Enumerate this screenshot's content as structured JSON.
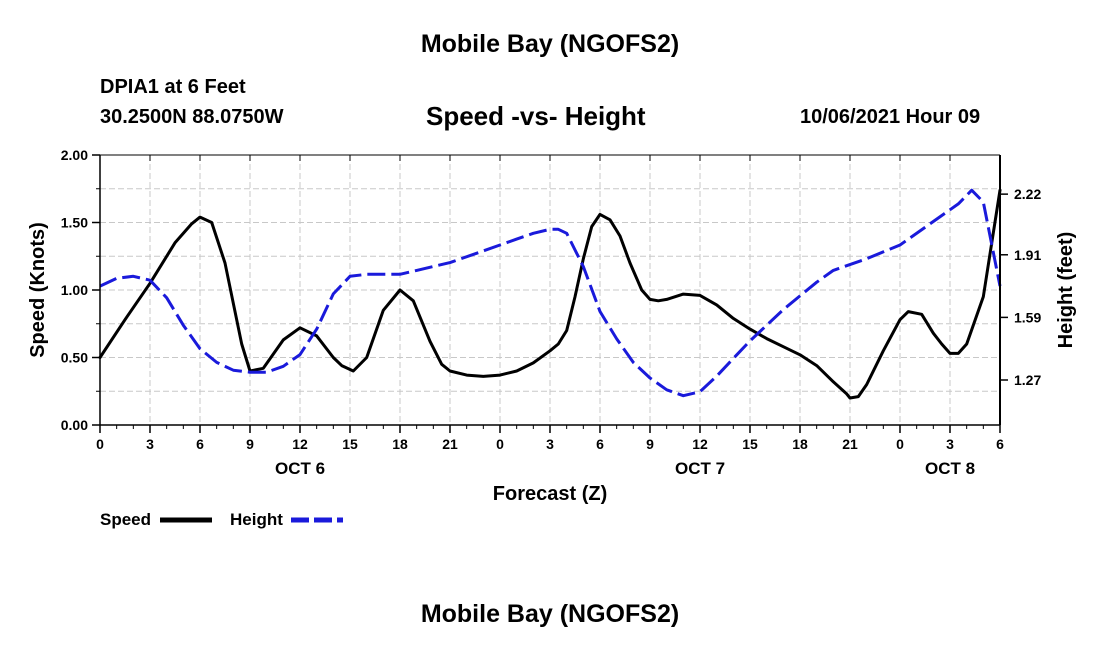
{
  "header": {
    "title": "Mobile Bay (NGOFS2)",
    "station": "DPIA1 at 6 Feet",
    "coordinates": "30.2500N  88.0750W",
    "subtitle": "Speed -vs- Height",
    "datetime": "10/06/2021 Hour 09"
  },
  "footer": {
    "title": "Mobile Bay (NGOFS2)"
  },
  "colors": {
    "speed": "#000000",
    "height": "#1a1adb",
    "grid": "#c8c8c8"
  },
  "chart_data": {
    "type": "line",
    "title": "Speed -vs- Height",
    "xlabel": "Forecast (Z)",
    "ylabel": "Speed (Knots)",
    "y2label": "Height (feet)",
    "xlim": [
      0,
      54
    ],
    "ylim": [
      0,
      2.0
    ],
    "y2lim": [
      1.04,
      2.42
    ],
    "x_ticks": [
      0,
      3,
      6,
      9,
      12,
      15,
      18,
      21,
      24,
      27,
      30,
      33,
      36,
      39,
      42,
      45,
      48,
      51,
      54
    ],
    "x_tick_labels": [
      "0",
      "3",
      "6",
      "9",
      "12",
      "15",
      "18",
      "21",
      "0",
      "3",
      "6",
      "9",
      "12",
      "15",
      "18",
      "21",
      "0",
      "3",
      "6"
    ],
    "day_labels": [
      {
        "x": 12,
        "label": "OCT 6"
      },
      {
        "x": 36,
        "label": "OCT 7"
      },
      {
        "x": 51,
        "label": "OCT 8"
      }
    ],
    "y_ticks": [
      0,
      0.5,
      1.0,
      1.5,
      2.0
    ],
    "y_tick_labels": [
      "0.00",
      "0.50",
      "1.00",
      "1.50",
      "2.00"
    ],
    "y2_ticks": [
      1.27,
      1.59,
      1.91,
      2.22
    ],
    "y2_tick_labels": [
      "1.27",
      "1.59",
      "1.91",
      "2.22"
    ],
    "grid": true,
    "legend": [
      "Speed",
      "Height"
    ],
    "series": [
      {
        "name": "Speed",
        "axis": "left",
        "x": [
          0,
          1.5,
          3,
          4.5,
          5.5,
          6,
          6.7,
          7.5,
          8.5,
          9,
          9.8,
          11,
          12,
          13,
          14,
          14.5,
          15.2,
          16,
          17,
          18,
          18.8,
          19.8,
          20.5,
          21,
          22,
          23,
          24,
          25,
          26,
          27,
          27.5,
          28,
          28.5,
          29,
          29.5,
          30,
          30.6,
          31.2,
          31.8,
          32.5,
          33,
          33.5,
          34,
          35,
          36,
          37,
          38,
          39,
          40,
          41,
          42,
          43,
          44,
          44.8,
          45,
          45.5,
          46,
          47,
          48,
          48.5,
          49.3,
          50,
          50.5,
          51,
          51.5,
          52,
          53,
          54
        ],
        "values": [
          0.5,
          0.78,
          1.05,
          1.35,
          1.49,
          1.54,
          1.5,
          1.2,
          0.6,
          0.4,
          0.42,
          0.63,
          0.72,
          0.66,
          0.5,
          0.44,
          0.4,
          0.5,
          0.85,
          1.0,
          0.92,
          0.62,
          0.45,
          0.4,
          0.37,
          0.36,
          0.37,
          0.4,
          0.46,
          0.55,
          0.6,
          0.7,
          0.95,
          1.23,
          1.47,
          1.56,
          1.52,
          1.4,
          1.2,
          1.0,
          0.93,
          0.92,
          0.93,
          0.97,
          0.96,
          0.89,
          0.79,
          0.71,
          0.64,
          0.58,
          0.52,
          0.44,
          0.32,
          0.23,
          0.2,
          0.21,
          0.3,
          0.55,
          0.78,
          0.84,
          0.82,
          0.68,
          0.6,
          0.53,
          0.53,
          0.6,
          0.95,
          1.74
        ]
      },
      {
        "name": "Height",
        "axis": "right",
        "x": [
          0,
          1,
          2,
          3,
          4,
          5,
          6,
          7,
          8,
          9,
          10,
          11,
          12,
          13,
          14,
          15,
          16,
          17,
          18,
          19,
          21,
          24,
          25,
          26,
          27,
          27.5,
          28,
          29,
          30,
          31,
          32,
          33,
          34,
          35,
          36,
          37,
          38,
          39,
          40,
          41,
          42,
          43,
          44,
          46,
          48,
          50,
          51.5,
          52.3,
          53,
          54
        ],
        "values": [
          1.75,
          1.79,
          1.8,
          1.78,
          1.69,
          1.55,
          1.43,
          1.36,
          1.32,
          1.31,
          1.31,
          1.34,
          1.4,
          1.53,
          1.71,
          1.8,
          1.81,
          1.81,
          1.81,
          1.83,
          1.87,
          1.96,
          1.99,
          2.02,
          2.04,
          2.04,
          2.02,
          1.85,
          1.62,
          1.48,
          1.36,
          1.28,
          1.22,
          1.19,
          1.21,
          1.29,
          1.38,
          1.47,
          1.55,
          1.63,
          1.7,
          1.77,
          1.83,
          1.89,
          1.96,
          2.08,
          2.17,
          2.24,
          2.18,
          1.75
        ]
      }
    ]
  }
}
